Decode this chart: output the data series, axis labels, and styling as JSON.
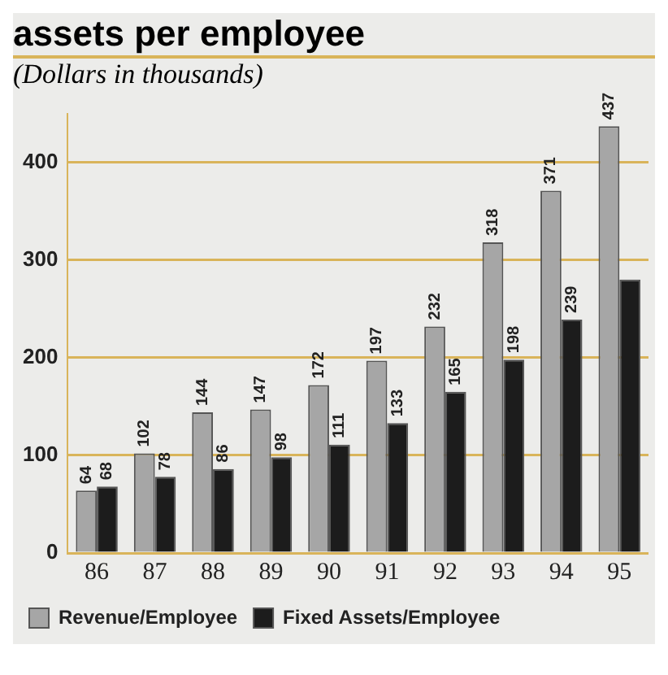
{
  "chart_data": {
    "type": "bar",
    "title": "assets per employee",
    "subtitle": "(Dollars in thousands)",
    "categories": [
      "86",
      "87",
      "88",
      "89",
      "90",
      "91",
      "92",
      "93",
      "94",
      "95"
    ],
    "series": [
      {
        "name": "Revenue/Employee",
        "color": "#a6a6a6",
        "values": [
          64,
          102,
          144,
          147,
          172,
          197,
          232,
          318,
          371,
          437
        ],
        "value_labels": [
          "64",
          "102",
          "144",
          "147",
          "172",
          "197",
          "232",
          "318",
          "371",
          "437"
        ]
      },
      {
        "name": "Fixed Assets/Employee",
        "color": "#1c1c1c",
        "values": [
          68,
          78,
          86,
          98,
          111,
          133,
          165,
          198,
          239,
          280
        ],
        "value_labels": [
          "68",
          "78",
          "86",
          "98",
          "111",
          "133",
          "165",
          "198",
          "239",
          null
        ]
      }
    ],
    "ylim": [
      0,
      450
    ],
    "yticks": [
      0,
      100,
      200,
      300,
      400
    ],
    "grid": "y",
    "legend": "bottom"
  }
}
